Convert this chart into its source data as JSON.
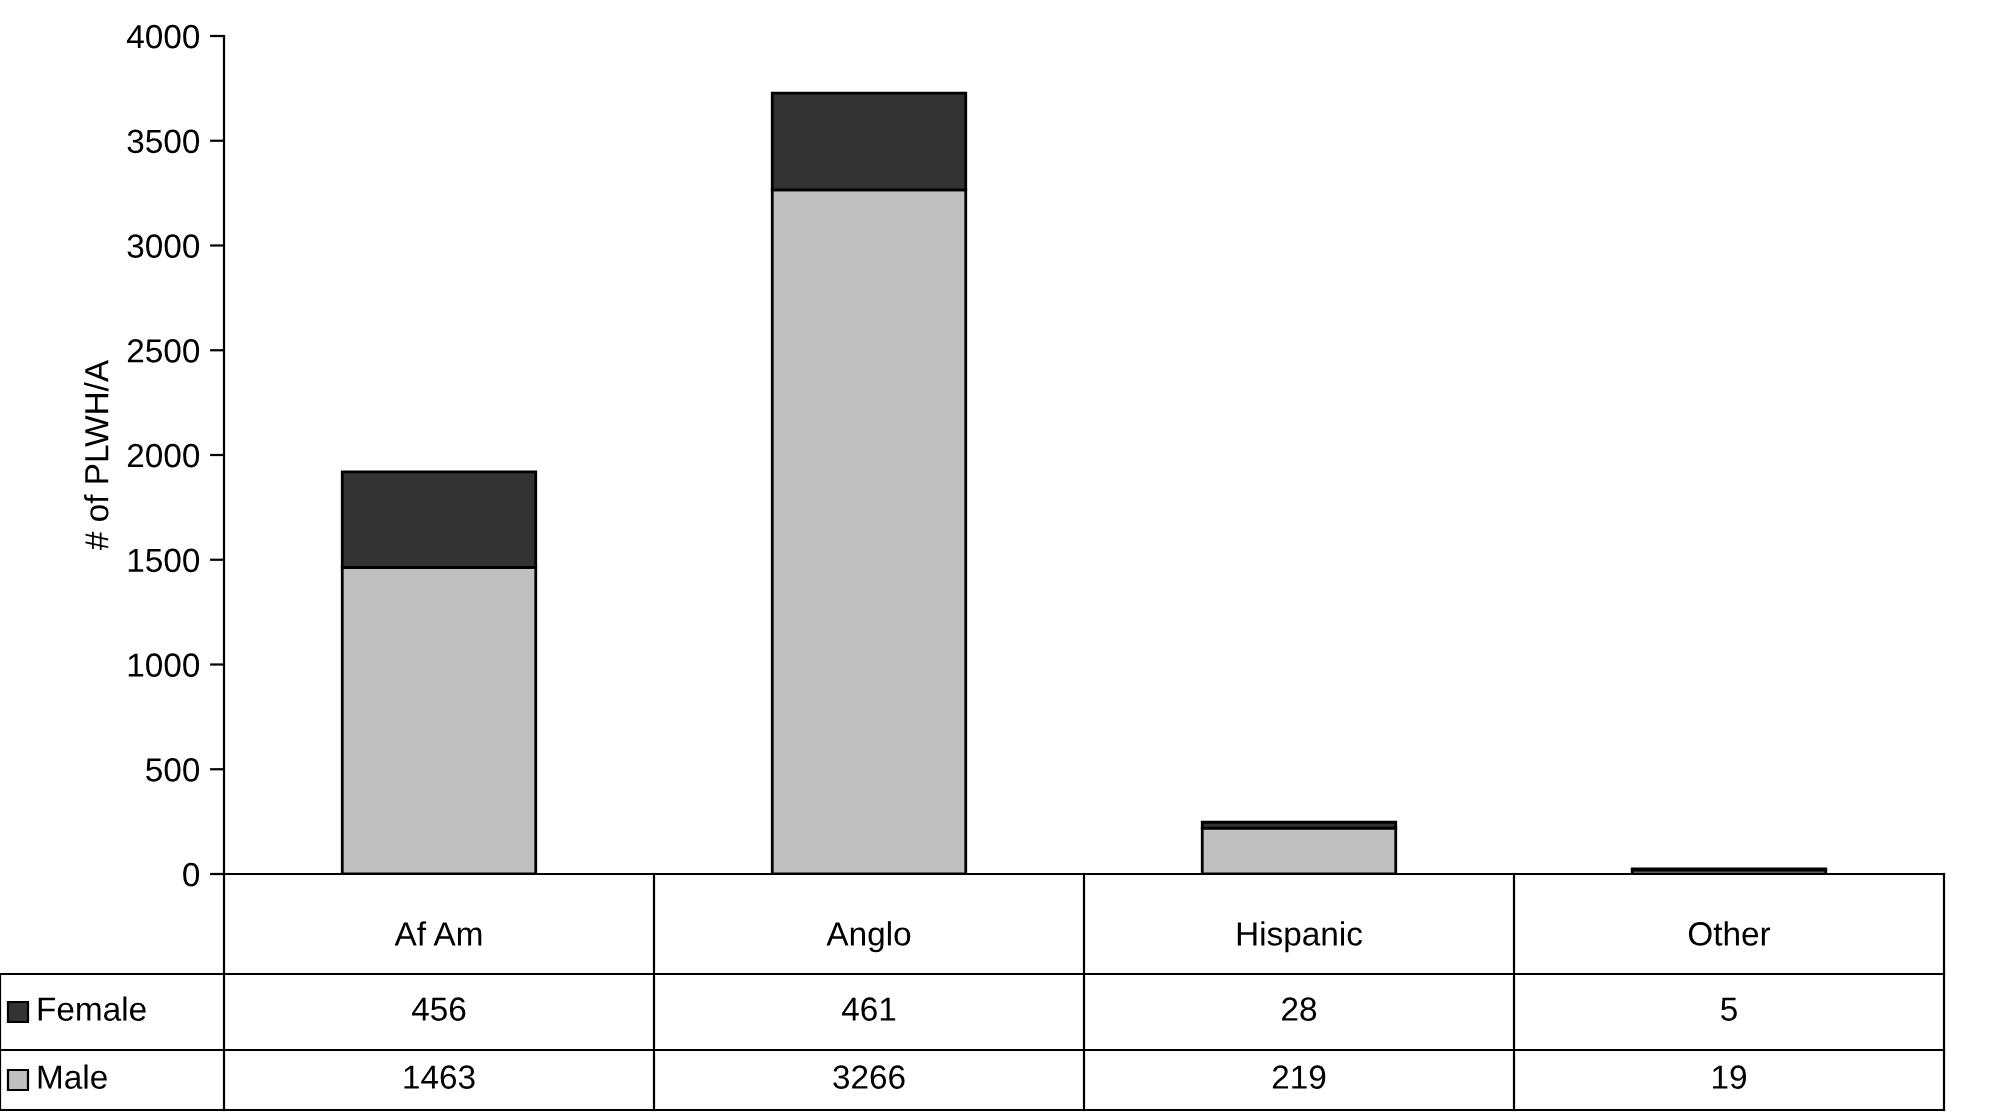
{
  "chart_data": {
    "type": "bar",
    "ylabel": "# of PLWH/A",
    "categories": [
      "Af Am",
      "Anglo",
      "Hispanic",
      "Other"
    ],
    "series": [
      {
        "name": "Male",
        "color": "#c0c0c0",
        "values": [
          1463,
          3266,
          219,
          19
        ]
      },
      {
        "name": "Female",
        "color": "#333333",
        "values": [
          456,
          461,
          28,
          5
        ]
      }
    ],
    "stacked": true,
    "ylim": [
      0,
      4000
    ],
    "yticks": [
      0,
      500,
      1000,
      1500,
      2000,
      2500,
      3000,
      3500,
      4000
    ],
    "grid": false,
    "legend": "left",
    "data_labels": true
  }
}
